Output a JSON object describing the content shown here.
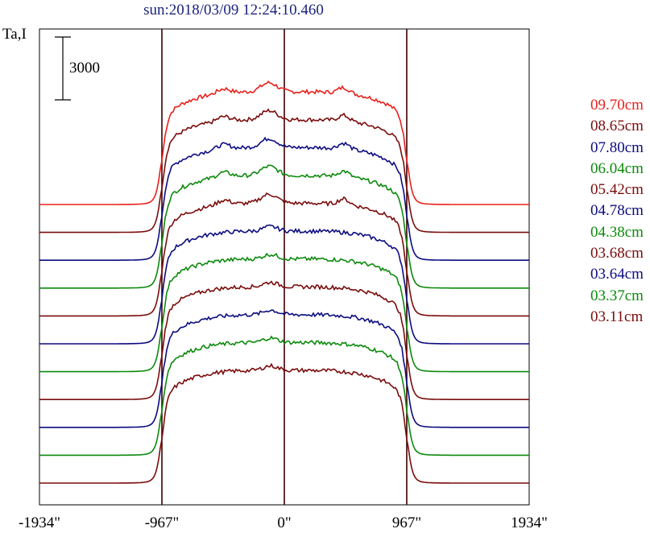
{
  "chart_data": {
    "type": "line",
    "title": "sun:2018/03/09 12:24:10.460",
    "ylabel": "Ta,I",
    "scale_bar_label": "3000",
    "x_ticks": [
      "-1934\"",
      "-967\"",
      "0\"",
      "967\"",
      "1934\""
    ],
    "x_range": [
      -1934,
      1934
    ],
    "x_tick_values": [
      -1934,
      -967,
      0,
      967,
      1934
    ],
    "vertical_lines_at": [
      -967,
      0,
      967
    ],
    "series": [
      {
        "name": "09.70cm",
        "color": "#e8201c",
        "profile": "raised"
      },
      {
        "name": "08.65cm",
        "color": "#7b0c0c",
        "profile": "raised"
      },
      {
        "name": "07.80cm",
        "color": "#0c0c80",
        "profile": "raised"
      },
      {
        "name": "06.04cm",
        "color": "#0c8a0c",
        "profile": "raised"
      },
      {
        "name": "05.42cm",
        "color": "#7b0c0c",
        "profile": "raised"
      },
      {
        "name": "04.78cm",
        "color": "#0c0c80",
        "profile": "flat"
      },
      {
        "name": "04.38cm",
        "color": "#0c8a0c",
        "profile": "flat"
      },
      {
        "name": "03.68cm",
        "color": "#7b0c0c",
        "profile": "flat"
      },
      {
        "name": "03.64cm",
        "color": "#0c0c80",
        "profile": "flat"
      },
      {
        "name": "03.37cm",
        "color": "#0c8a0c",
        "profile": "flat"
      },
      {
        "name": "03.11cm",
        "color": "#7b0c0c",
        "profile": "flat"
      }
    ],
    "grid": false,
    "legend_position": "right"
  }
}
